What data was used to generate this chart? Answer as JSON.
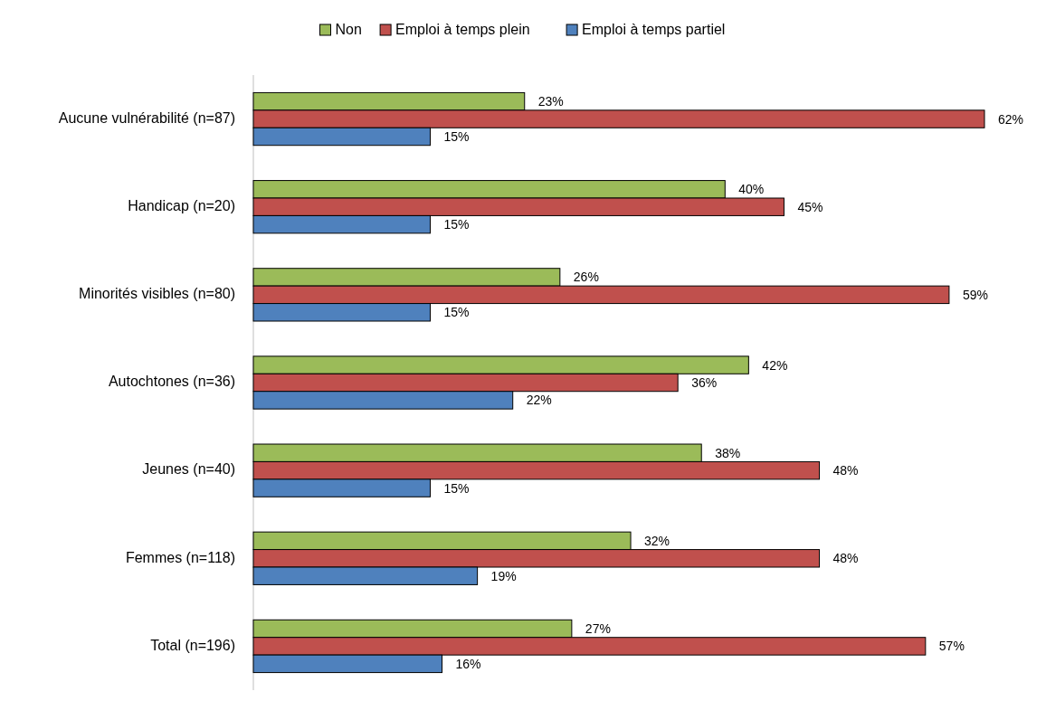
{
  "chart_data": {
    "type": "bar",
    "orientation": "horizontal",
    "legend": "top",
    "categories": [
      "Aucune vulnérabilité (n=87)",
      "Handicap (n=20)",
      "Minorités visibles (n=80)",
      "Autochtones (n=36)",
      "Jeunes (n=40)",
      "Femmes (n=118)",
      "Total (n=196)"
    ],
    "series": [
      {
        "name": "Non",
        "color": "#9bbb59",
        "values": [
          23,
          40,
          26,
          42,
          38,
          32,
          27
        ],
        "value_labels": [
          "23%",
          "40%",
          "26%",
          "42%",
          "38%",
          "32%",
          "27%"
        ]
      },
      {
        "name": "Emploi à temps plein",
        "color": "#c0504d",
        "values": [
          62,
          45,
          59,
          36,
          48,
          48,
          57
        ],
        "value_labels": [
          "62%",
          "45%",
          "59%",
          "36%",
          "48%",
          "48%",
          "57%"
        ]
      },
      {
        "name": "Emploi à temps partiel",
        "color": "#4f81bd",
        "values": [
          15,
          15,
          15,
          22,
          15,
          19,
          16
        ],
        "value_labels": [
          "15%",
          "15%",
          "15%",
          "22%",
          "15%",
          "19%",
          "16%"
        ]
      }
    ]
  }
}
